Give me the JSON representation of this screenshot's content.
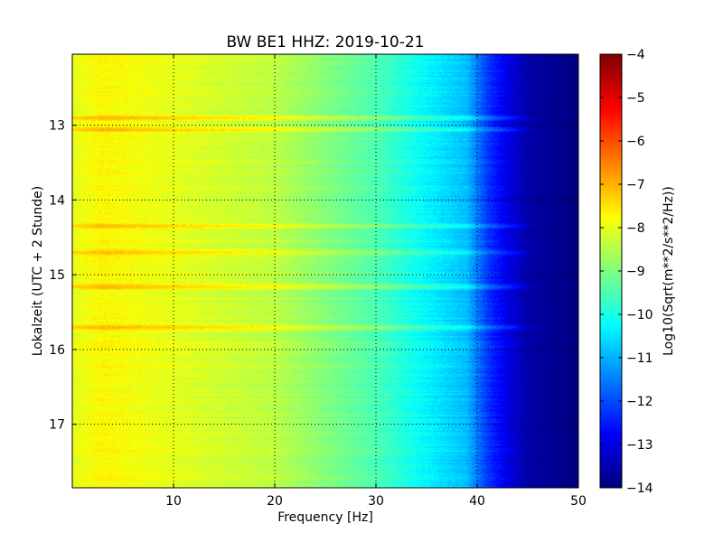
{
  "chart_data": {
    "type": "heatmap",
    "title": "BW BE1 HHZ: 2019-10-21",
    "xlabel": "Frequency [Hz]",
    "ylabel": "Lokalzeit (UTC + 2 Stunde)",
    "xlim": [
      0,
      50
    ],
    "ylim": [
      12.05,
      17.85
    ],
    "x_ticks": [
      10,
      20,
      30,
      40,
      50
    ],
    "x_tick_labels": [
      "10",
      "20",
      "30",
      "40",
      "50"
    ],
    "y_ticks": [
      13,
      14,
      15,
      16,
      17
    ],
    "y_tick_labels": [
      "13",
      "14",
      "15",
      "16",
      "17"
    ],
    "y_inverted": true,
    "grid": true,
    "colormap": "jet",
    "colorbar": {
      "label": "Log10(Sqrt(m**2/s**2/Hz))",
      "min": -14,
      "max": -4,
      "ticks": [
        -4,
        -5,
        -6,
        -7,
        -8,
        -9,
        -10,
        -11,
        -12,
        -13,
        -14
      ],
      "tick_labels": [
        "−4",
        "−5",
        "−6",
        "−7",
        "−8",
        "−9",
        "−10",
        "−11",
        "−12",
        "−13",
        "−14"
      ]
    },
    "spectrum_profile": [
      {
        "frequency_hz": 0,
        "value": -8.0
      },
      {
        "frequency_hz": 3,
        "value": -7.7
      },
      {
        "frequency_hz": 10,
        "value": -8.0
      },
      {
        "frequency_hz": 20,
        "value": -8.4
      },
      {
        "frequency_hz": 30,
        "value": -9.5
      },
      {
        "frequency_hz": 35,
        "value": -10.3
      },
      {
        "frequency_hz": 39,
        "value": -10.9
      },
      {
        "frequency_hz": 41,
        "value": -12.2
      },
      {
        "frequency_hz": 43,
        "value": -13.0
      },
      {
        "frequency_hz": 45,
        "value": -13.6
      },
      {
        "frequency_hz": 50,
        "value": -14.0
      }
    ],
    "bright_bands_hours": [
      12.9,
      13.05,
      14.35,
      14.7,
      15.15,
      15.7
    ]
  }
}
